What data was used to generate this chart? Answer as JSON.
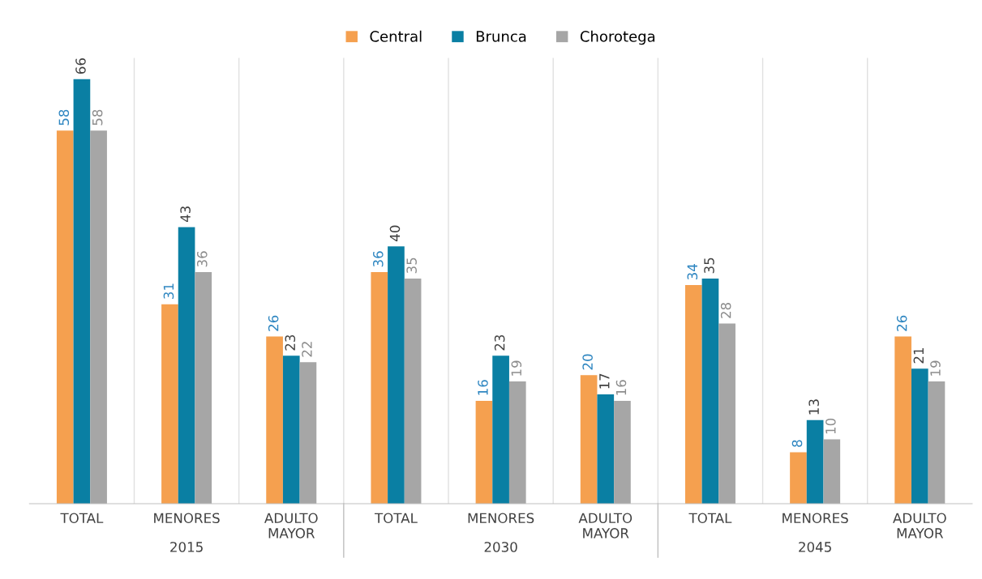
{
  "chart_data": {
    "type": "bar",
    "categories": [
      "TOTAL",
      "MENORES",
      "ADULTO\nMAYOR",
      "TOTAL",
      "MENORES",
      "ADULTO\nMAYOR",
      "TOTAL",
      "MENORES",
      "ADULTO\nMAYOR"
    ],
    "series": [
      {
        "name": "Central",
        "color": "#f5a04f",
        "values": [
          58,
          31,
          26,
          36,
          16,
          20,
          34,
          8,
          26
        ]
      },
      {
        "name": "Brunca",
        "color": "#0a7fa3",
        "values": [
          66,
          43,
          23,
          40,
          23,
          17,
          35,
          13,
          21
        ]
      },
      {
        "name": "Chorotega",
        "color": "#a6a6a6",
        "values": [
          58,
          36,
          22,
          35,
          19,
          16,
          28,
          10,
          19
        ]
      }
    ],
    "annotations": [
      "2015",
      "2030",
      "2045"
    ],
    "data_labels": true,
    "legend": "top",
    "grid": false
  }
}
